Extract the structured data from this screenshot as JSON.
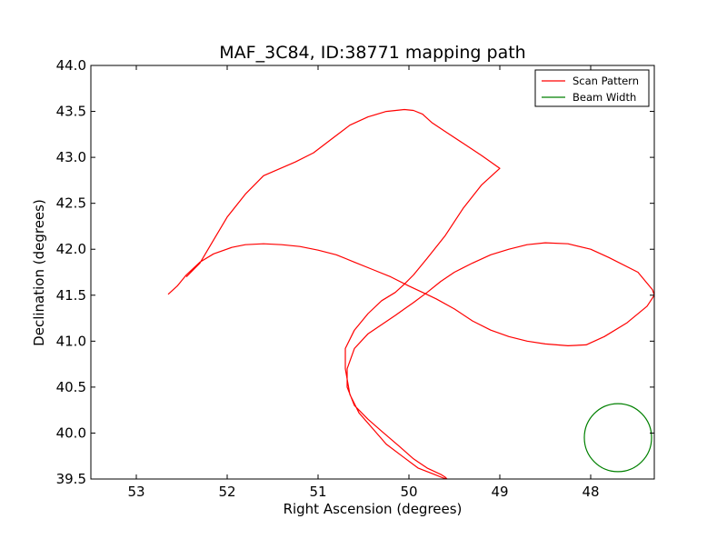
{
  "chart_data": {
    "type": "line",
    "title": "MAF_3C84, ID:38771 mapping path",
    "xlabel": "Right Ascension (degrees)",
    "ylabel": "Declination (degrees)",
    "xlim": [
      53.5,
      47.3
    ],
    "ylim": [
      39.5,
      44.0
    ],
    "x_ticks": [
      53,
      52,
      51,
      50,
      49,
      48
    ],
    "x_tick_labels": [
      "53",
      "52",
      "51",
      "50",
      "49",
      "48"
    ],
    "y_ticks": [
      39.5,
      40.0,
      40.5,
      41.0,
      41.5,
      42.0,
      42.5,
      43.0,
      43.5,
      44.0
    ],
    "y_tick_labels": [
      "39.5",
      "40.0",
      "40.5",
      "41.0",
      "41.5",
      "42.0",
      "42.5",
      "43.0",
      "43.5",
      "44.0"
    ],
    "grid": false,
    "legend_position": "top-right",
    "series": [
      {
        "name": "Scan Pattern",
        "color": "#ff0000",
        "x": [
          52.65,
          52.55,
          52.45,
          52.3,
          52.15,
          51.95,
          51.8,
          51.6,
          51.4,
          51.2,
          51.0,
          50.8,
          50.6,
          50.4,
          50.2,
          50.0,
          49.85,
          49.7,
          49.5,
          49.3,
          49.1,
          48.9,
          48.7,
          48.5,
          48.25,
          48.05,
          47.85,
          47.6,
          47.38,
          47.3,
          47.32,
          47.48,
          47.8,
          48.0,
          48.25,
          48.5,
          48.7,
          48.9,
          49.1,
          49.3,
          49.5,
          49.65,
          49.8,
          49.95,
          50.05,
          50.15,
          50.3,
          50.45,
          50.6,
          50.68,
          50.68,
          50.6,
          50.45,
          50.3,
          50.1,
          49.95,
          49.8,
          49.65,
          49.6,
          49.58,
          49.62,
          49.72,
          49.9,
          50.05,
          50.25,
          50.4,
          50.55,
          50.65,
          50.7,
          50.7,
          50.6,
          50.45,
          50.3,
          50.15,
          50.05,
          49.95,
          49.8,
          49.6,
          49.4,
          49.2,
          49.0,
          49.2,
          49.4,
          49.6,
          49.75,
          49.85,
          49.95,
          50.05,
          50.25,
          50.45,
          50.65,
          50.85,
          51.05,
          51.25,
          51.6,
          51.8,
          52.0,
          52.15,
          52.3,
          52.45
        ],
        "y": [
          41.51,
          41.6,
          41.72,
          41.86,
          41.95,
          42.02,
          42.05,
          42.06,
          42.05,
          42.03,
          41.99,
          41.94,
          41.86,
          41.78,
          41.7,
          41.6,
          41.53,
          41.46,
          41.35,
          41.22,
          41.12,
          41.05,
          41.0,
          40.97,
          40.95,
          40.96,
          41.05,
          41.2,
          41.38,
          41.5,
          41.56,
          41.75,
          41.91,
          42.0,
          42.06,
          42.07,
          42.05,
          42.0,
          41.94,
          41.85,
          41.75,
          41.65,
          41.53,
          41.42,
          41.35,
          41.28,
          41.18,
          41.08,
          40.92,
          40.7,
          40.5,
          40.3,
          40.15,
          40.02,
          39.85,
          39.72,
          39.62,
          39.55,
          39.52,
          39.5,
          39.51,
          39.55,
          39.62,
          39.73,
          39.88,
          40.05,
          40.22,
          40.42,
          40.7,
          40.92,
          41.12,
          41.3,
          41.44,
          41.53,
          41.62,
          41.72,
          41.9,
          42.15,
          42.45,
          42.7,
          42.88,
          43.02,
          43.15,
          43.28,
          43.38,
          43.47,
          43.51,
          43.52,
          43.5,
          43.44,
          43.35,
          43.2,
          43.05,
          42.95,
          42.8,
          42.6,
          42.35,
          42.1,
          41.85,
          41.7
        ]
      },
      {
        "name": "Beam Width",
        "color": "#008000",
        "shape": "circle",
        "center": [
          47.7,
          39.95
        ],
        "radius_deg": 0.37
      }
    ]
  }
}
